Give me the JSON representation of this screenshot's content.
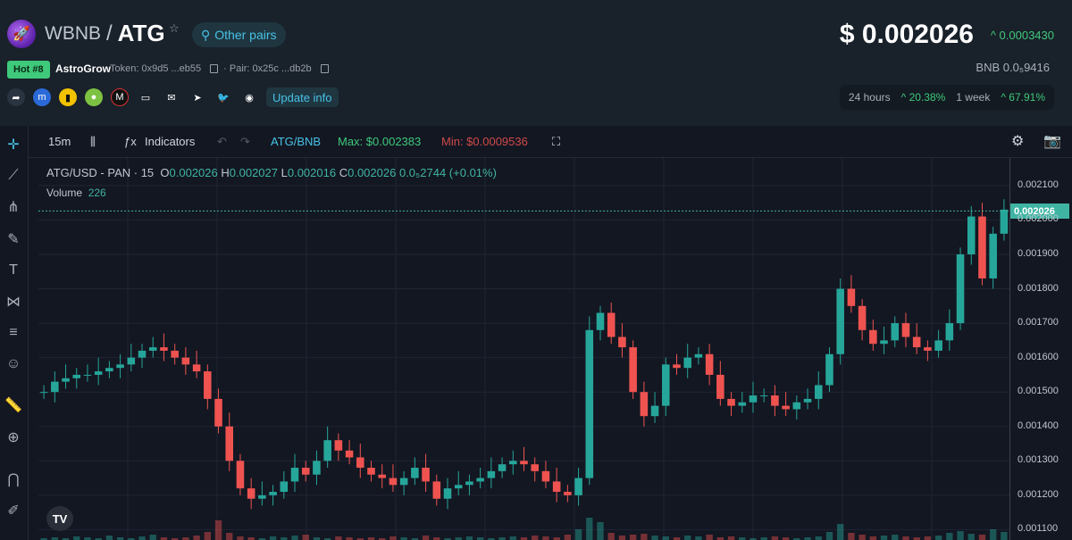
{
  "header": {
    "base_symbol": "WBNB",
    "separator": "/",
    "quote_symbol": "ATG",
    "other_pairs_label": "Other pairs",
    "price": "$ 0.002026",
    "price_change": "^ 0.0003430",
    "hot_badge": "Hot #8",
    "token_name": "AstroGrow",
    "token_address": "Token: 0x9d5 ...eb55",
    "pair_address": "· Pair: 0x25c ...db2b",
    "bnb_price": "BNB  0.0₅9416",
    "update_info_label": "Update info",
    "perf_24h_label": "24 hours",
    "perf_24h_value": "^ 20.38%",
    "perf_1w_label": "1 week",
    "perf_1w_value": "^ 67.91%",
    "accent_color": "#48c2e6",
    "up_color": "#3fc97b"
  },
  "toolbar": {
    "interval": "15m",
    "indicators_label": "Indicators",
    "symbol": "ATG/BNB",
    "max_label": "Max: $0.002383",
    "min_label": "Min: $0.0009536"
  },
  "legend": {
    "symbol_line": "ATG/USD - PAN · 15",
    "open_label": "O",
    "open": "0.002026",
    "high_label": "H",
    "high": "0.002027",
    "low_label": "L",
    "low": "0.002016",
    "close_label": "C",
    "close": "0.002026",
    "change": "0.0₅2744 (+0.01%)",
    "volume_label": "Volume",
    "volume": "226"
  },
  "chart_data": {
    "type": "candlestick",
    "y_ticks": [
      "0.002100",
      "0.002000",
      "0.001900",
      "0.001800",
      "0.001700",
      "0.001600",
      "0.001500",
      "0.001400",
      "0.001300",
      "0.001200",
      "0.001100"
    ],
    "ylim": [
      0.00107,
      0.00218
    ],
    "current_price": "0.002026",
    "close_series": [
      0.0015,
      0.00153,
      0.00154,
      0.00155,
      0.00155,
      0.00156,
      0.00157,
      0.00158,
      0.0016,
      0.00162,
      0.00163,
      0.00162,
      0.0016,
      0.00158,
      0.00156,
      0.00148,
      0.0014,
      0.0013,
      0.00122,
      0.00119,
      0.0012,
      0.00121,
      0.00124,
      0.00128,
      0.00126,
      0.0013,
      0.00136,
      0.00133,
      0.00131,
      0.00128,
      0.00126,
      0.00125,
      0.00123,
      0.00125,
      0.00128,
      0.00124,
      0.00119,
      0.00122,
      0.00123,
      0.00124,
      0.00125,
      0.00127,
      0.00129,
      0.0013,
      0.00129,
      0.00127,
      0.00124,
      0.00121,
      0.0012,
      0.00125,
      0.00168,
      0.00173,
      0.00166,
      0.00163,
      0.0015,
      0.00143,
      0.00146,
      0.00158,
      0.00157,
      0.0016,
      0.00161,
      0.00155,
      0.00148,
      0.00146,
      0.00147,
      0.00149,
      0.00149,
      0.00146,
      0.00145,
      0.00147,
      0.00148,
      0.00152,
      0.00161,
      0.0018,
      0.00175,
      0.00168,
      0.00164,
      0.00165,
      0.0017,
      0.00166,
      0.00163,
      0.00162,
      0.00165,
      0.0017,
      0.0019,
      0.00201,
      0.00183,
      0.00196,
      0.00203
    ],
    "volume_series": [
      2,
      3,
      2,
      4,
      3,
      2,
      5,
      3,
      2,
      4,
      6,
      3,
      2,
      3,
      5,
      9,
      22,
      8,
      4,
      3,
      2,
      4,
      3,
      5,
      6,
      3,
      2,
      4,
      3,
      2,
      3,
      2,
      4,
      3,
      2,
      5,
      3,
      2,
      3,
      4,
      3,
      2,
      3,
      4,
      3,
      5,
      4,
      3,
      6,
      12,
      25,
      20,
      8,
      5,
      6,
      7,
      5,
      4,
      3,
      5,
      4,
      6,
      3,
      4,
      3,
      2,
      3,
      4,
      3,
      2,
      3,
      4,
      9,
      18,
      8,
      6,
      4,
      5,
      6,
      4,
      3,
      4,
      5,
      8,
      10,
      7,
      6,
      12,
      9
    ],
    "grid": true
  }
}
